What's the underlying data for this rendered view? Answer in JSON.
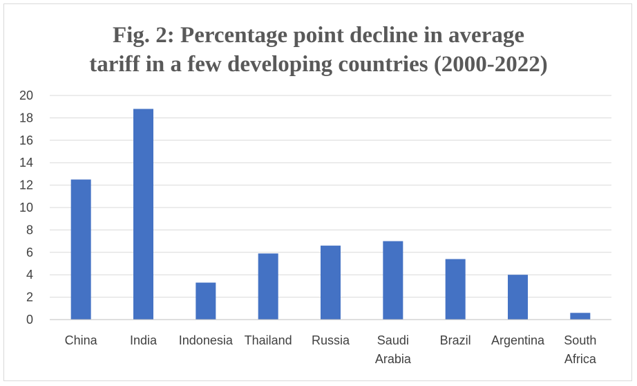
{
  "chart_data": {
    "type": "bar",
    "title_lines": [
      "Fig. 2: Percentage point decline in average",
      "tariff in a few developing countries (2000-2022)"
    ],
    "categories": [
      [
        "China"
      ],
      [
        "India"
      ],
      [
        "Indonesia"
      ],
      [
        "Thailand"
      ],
      [
        "Russia"
      ],
      [
        "Saudi",
        "Arabia"
      ],
      [
        "Brazil"
      ],
      [
        "Argentina"
      ],
      [
        "South",
        "Africa"
      ]
    ],
    "values": [
      12.5,
      18.8,
      3.3,
      5.9,
      6.6,
      7.0,
      5.4,
      4.0,
      0.6
    ],
    "ylim": [
      0,
      20
    ],
    "yticks": [
      "0",
      "2",
      "4",
      "6",
      "8",
      "10",
      "12",
      "14",
      "16",
      "18",
      "20"
    ],
    "xlabel": "",
    "ylabel": "",
    "grid": true,
    "legend": "none",
    "bar_color": "#4472c4",
    "grid_color": "#d9d9d9",
    "axis_color": "#bfbfbf"
  }
}
